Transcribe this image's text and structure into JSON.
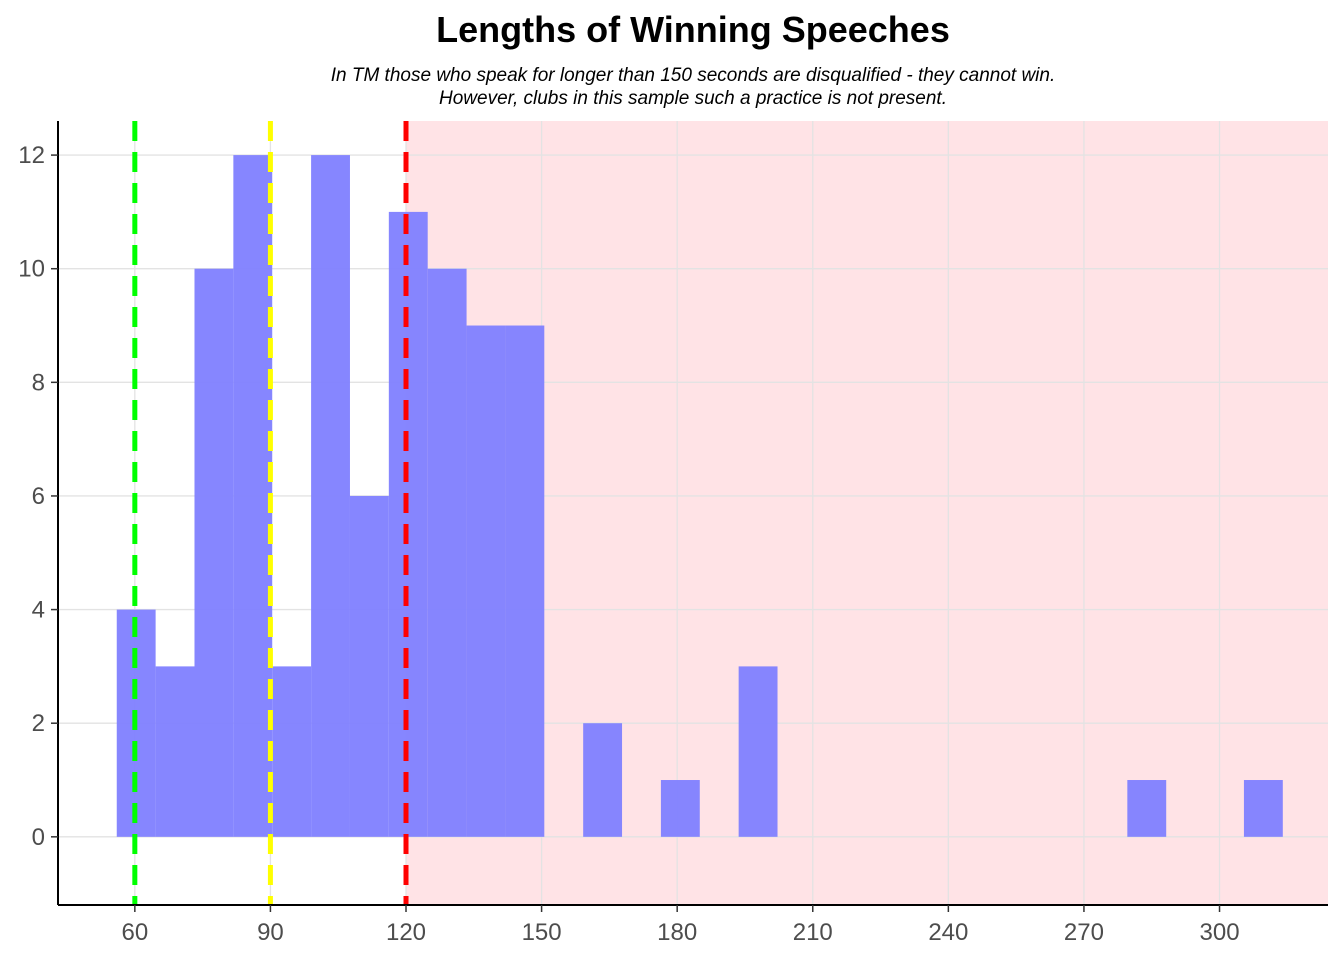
{
  "chart_data": {
    "type": "bar",
    "title": "Lengths of Winning Speeches",
    "subtitle_lines": [
      "In TM those who speak for longer than 150 seconds are disqualified - they cannot win.",
      "However, clubs in this sample such a practice is not present."
    ],
    "xlabel": "",
    "ylabel": "",
    "xlim": [
      43,
      324
    ],
    "ylim": [
      -1.2,
      12.6
    ],
    "x_ticks": [
      60,
      90,
      120,
      150,
      180,
      210,
      240,
      270,
      300
    ],
    "y_ticks": [
      0,
      2,
      4,
      6,
      8,
      10,
      12
    ],
    "grid": true,
    "bin_width": 8.6,
    "bins": [
      {
        "center": 60.3,
        "count": 4
      },
      {
        "center": 68.9,
        "count": 3
      },
      {
        "center": 77.5,
        "count": 10
      },
      {
        "center": 86.1,
        "count": 12
      },
      {
        "center": 94.7,
        "count": 3
      },
      {
        "center": 103.3,
        "count": 12
      },
      {
        "center": 111.9,
        "count": 6
      },
      {
        "center": 120.5,
        "count": 11
      },
      {
        "center": 129.1,
        "count": 10
      },
      {
        "center": 137.7,
        "count": 9
      },
      {
        "center": 146.3,
        "count": 9
      },
      {
        "center": 163.5,
        "count": 2
      },
      {
        "center": 180.7,
        "count": 1
      },
      {
        "center": 197.9,
        "count": 3
      },
      {
        "center": 283.9,
        "count": 1
      },
      {
        "center": 309.7,
        "count": 1
      }
    ],
    "bar_color": "#7f7fff",
    "shaded_region": {
      "from": 120,
      "to": 324,
      "color": "#ffe3e6"
    },
    "reference_lines": [
      {
        "x": 60,
        "color": "#00ff00"
      },
      {
        "x": 90,
        "color": "#ffff00"
      },
      {
        "x": 120,
        "color": "#ff0000"
      }
    ]
  }
}
